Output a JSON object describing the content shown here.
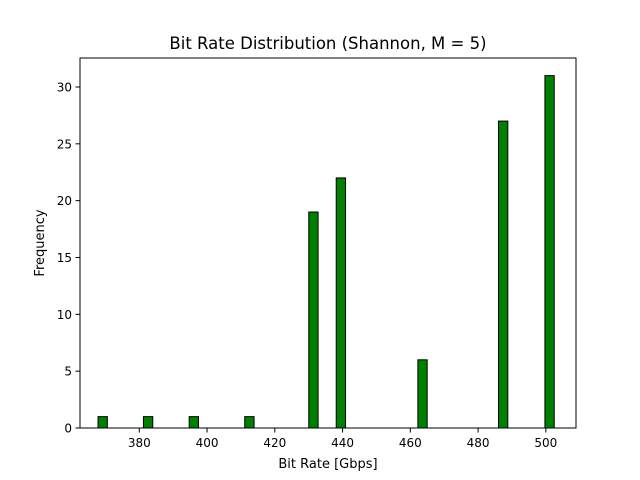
{
  "chart_data": {
    "type": "bar",
    "title": "Bit Rate Distribution (Shannon, M = 5)",
    "xlabel": "Bit Rate [Gbps]",
    "ylabel": "Frequency",
    "xlim": [
      362.5,
      508.9
    ],
    "ylim": [
      0,
      32.55
    ],
    "xticks": [
      380,
      400,
      420,
      440,
      460,
      480,
      500
    ],
    "yticks": [
      0,
      5,
      10,
      15,
      20,
      25,
      30
    ],
    "bin_width": 2.75,
    "bar_color": "#008000",
    "edge_color": "#000000",
    "grid": false,
    "bins": [
      {
        "x": 369.2,
        "value": 1
      },
      {
        "x": 382.6,
        "value": 1
      },
      {
        "x": 396.1,
        "value": 1
      },
      {
        "x": 412.5,
        "value": 1
      },
      {
        "x": 431.4,
        "value": 19
      },
      {
        "x": 439.5,
        "value": 22
      },
      {
        "x": 463.6,
        "value": 6
      },
      {
        "x": 487.4,
        "value": 27
      },
      {
        "x": 501.1,
        "value": 31
      }
    ]
  }
}
